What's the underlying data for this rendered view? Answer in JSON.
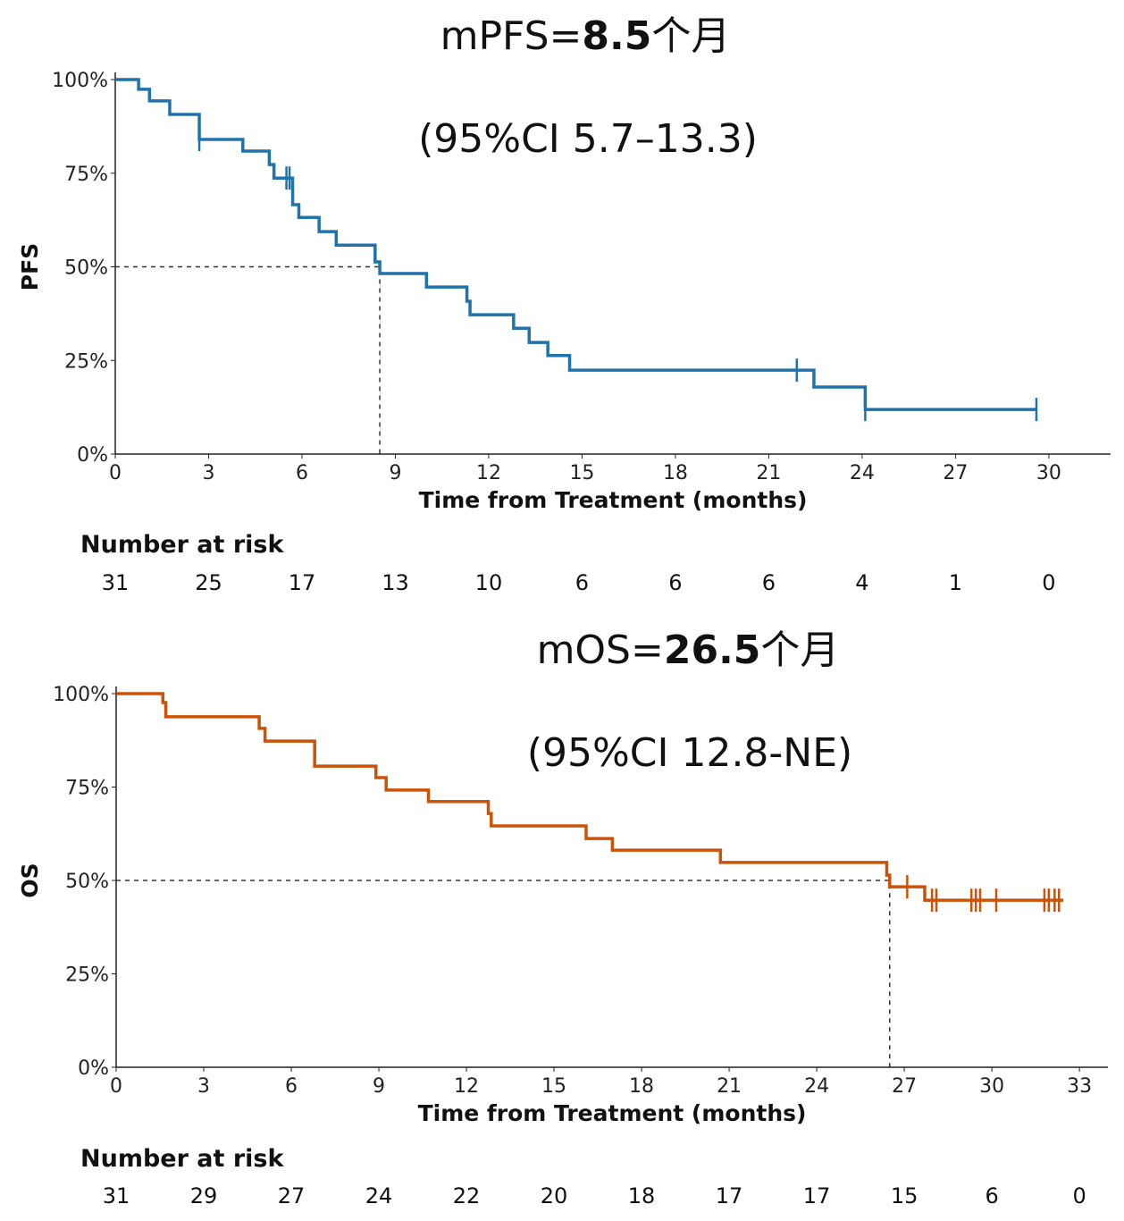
{
  "chart_data": [
    {
      "type": "line",
      "title": "mPFS=",
      "title_bold": "8.5",
      "title_suffix": "个月",
      "subtitle": "(95%CI 5.7–13.3)",
      "ylabel": "PFS",
      "xlabel": "Time from Treatment (months)",
      "color": "#1f72ac",
      "xlim": [
        0,
        32
      ],
      "ylim": [
        0,
        100
      ],
      "xticks": [
        0,
        3,
        6,
        9,
        12,
        15,
        18,
        21,
        24,
        27,
        30
      ],
      "yticks": [
        "0%",
        "25%",
        "50%",
        "75%",
        "100%"
      ],
      "median": 8.5,
      "steps": [
        [
          0,
          100
        ],
        [
          0.75,
          97.4
        ],
        [
          1.1,
          94.3
        ],
        [
          1.75,
          90.7
        ],
        [
          2.7,
          84
        ],
        [
          4.1,
          80.9
        ],
        [
          4.95,
          77.3
        ],
        [
          5.1,
          73.7
        ],
        [
          5.7,
          66.6
        ],
        [
          5.9,
          63.2
        ],
        [
          6.55,
          59.4
        ],
        [
          7.1,
          55.8
        ],
        [
          8.35,
          51.3
        ],
        [
          8.5,
          48.2
        ],
        [
          10,
          44.6
        ],
        [
          11.3,
          40.8
        ],
        [
          11.4,
          37.2
        ],
        [
          12.8,
          33.6
        ],
        [
          13.3,
          29.8
        ],
        [
          13.9,
          26.3
        ],
        [
          14.6,
          22.4
        ],
        [
          22.45,
          17.9
        ],
        [
          24.1,
          11.9
        ]
      ],
      "end": 29.6,
      "censors": [
        2.7,
        5.5,
        5.6,
        21.9,
        24.1,
        29.6
      ],
      "risk_header": "Number at risk",
      "risk": [
        31,
        25,
        17,
        13,
        10,
        6,
        6,
        6,
        4,
        1,
        0
      ]
    },
    {
      "type": "line",
      "title": "mOS=",
      "title_bold": "26.5",
      "title_suffix": "个月",
      "subtitle": "(95%CI 12.8-NE)",
      "ylabel": "OS",
      "xlabel": "Time from Treatment (months)",
      "color": "#cc5208",
      "xlim": [
        0,
        34
      ],
      "ylim": [
        0,
        100
      ],
      "xticks": [
        0,
        3,
        6,
        9,
        12,
        15,
        18,
        21,
        24,
        27,
        30,
        33
      ],
      "yticks": [
        "0%",
        "25%",
        "50%",
        "75%",
        "100%"
      ],
      "median": 26.5,
      "steps": [
        [
          0,
          100
        ],
        [
          1.6,
          97.6
        ],
        [
          1.7,
          93.8
        ],
        [
          4.9,
          90.7
        ],
        [
          5.1,
          87.3
        ],
        [
          6.8,
          80.6
        ],
        [
          8.9,
          77.5
        ],
        [
          9.25,
          74.2
        ],
        [
          10.7,
          71.1
        ],
        [
          12.75,
          67.9
        ],
        [
          12.85,
          64.6
        ],
        [
          16.1,
          61.2
        ],
        [
          17,
          58.1
        ],
        [
          20.7,
          54.8
        ],
        [
          26.4,
          51.4
        ],
        [
          26.5,
          48.3
        ],
        [
          27.7,
          44.7
        ]
      ],
      "end": 32.45,
      "censors": [
        27.1,
        27.95,
        28.1,
        29.3,
        29.45,
        29.6,
        30.15,
        31.8,
        31.95,
        32.15,
        32.3
      ],
      "risk_header": "Number at risk",
      "risk": [
        31,
        29,
        27,
        24,
        22,
        20,
        18,
        17,
        17,
        15,
        6,
        0
      ]
    }
  ]
}
